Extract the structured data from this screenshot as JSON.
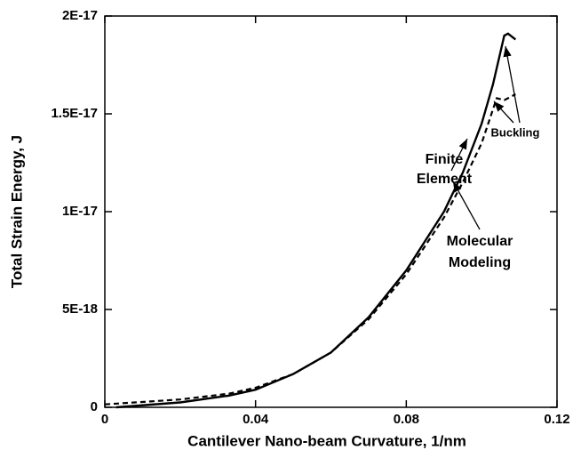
{
  "chart_data": {
    "type": "line",
    "x_label": "Cantilever Nano-beam Curvature, 1/nm",
    "y_label": "Total Strain Energy, J",
    "xlim": [
      0,
      0.12
    ],
    "xticks": [
      0,
      0.04,
      0.08,
      0.12
    ],
    "ylim": [
      0,
      2e-17
    ],
    "yticks": [
      0,
      {
        "value": 5e-18,
        "label": "5E-18"
      },
      {
        "value": 1e-17,
        "label": "1E-17"
      },
      {
        "value": 1.5e-17,
        "label": "1.5E-17"
      },
      {
        "value": 2e-17,
        "label": "2E-17"
      }
    ],
    "series": [
      {
        "name": "Finite Element",
        "color": "#000000",
        "style": "solid",
        "x": [
          0.003,
          0.02,
          0.033,
          0.04,
          0.05,
          0.06,
          0.07,
          0.08,
          0.09,
          0.095,
          0.1,
          0.103,
          0.106,
          0.107,
          0.109
        ],
        "values": [
          0,
          2.5e-19,
          6e-19,
          9e-19,
          1.7e-18,
          2.8e-18,
          4.6e-18,
          7e-18,
          1e-17,
          1.2e-17,
          1.45e-17,
          1.65e-17,
          1.9e-17,
          1.91e-17,
          1.88e-17
        ]
      },
      {
        "name": "Molecular Modeling",
        "color": "#000000",
        "style": "dashed",
        "x": [
          0,
          0.02,
          0.033,
          0.04,
          0.05,
          0.06,
          0.07,
          0.08,
          0.09,
          0.095,
          0.1,
          0.104,
          0.106,
          0.109
        ],
        "values": [
          1.5e-19,
          4e-19,
          7e-19,
          1e-18,
          1.7e-18,
          2.8e-18,
          4.5e-18,
          6.8e-18,
          9.7e-18,
          1.15e-17,
          1.35e-17,
          1.58e-17,
          1.57e-17,
          1.6e-17
        ]
      }
    ],
    "annotations": [
      "Finite",
      "Element",
      "Buckling",
      "Molecular",
      "Modeling"
    ]
  }
}
